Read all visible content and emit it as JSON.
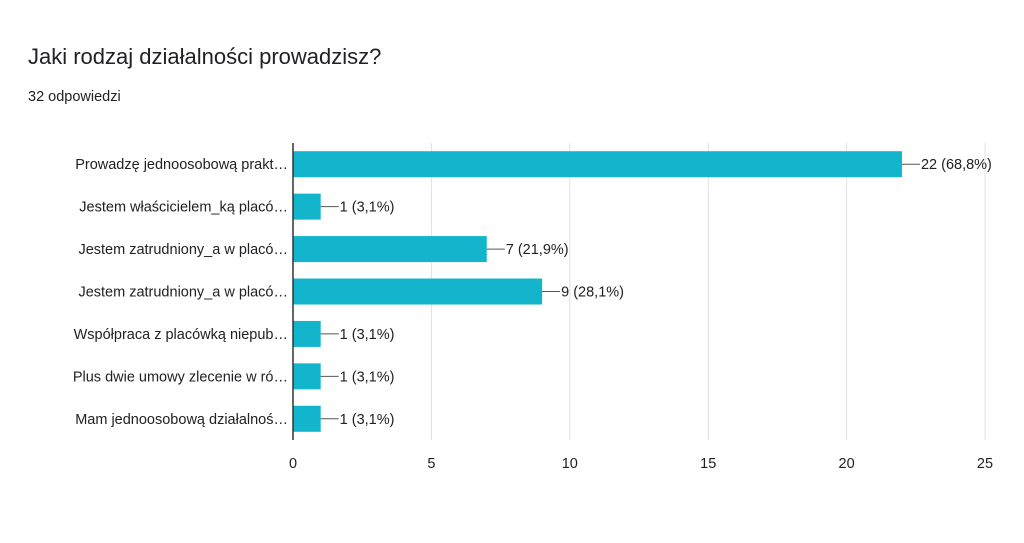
{
  "question": {
    "title": "Jaki rodzaj działalności prowadzisz?",
    "responses": "32 odpowiedzi"
  },
  "colors": {
    "bar": "#12b5cb",
    "grid": "#e0e0e0",
    "axis": "#333333"
  },
  "chart_data": {
    "type": "bar",
    "orientation": "horizontal",
    "categories": [
      "Prowadzę jednoosobową prakt…",
      "Jestem właścicielem_ką placó…",
      "Jestem zatrudniony_a w placó…",
      "Jestem zatrudniony_a w placó…",
      "Współpraca z placówką niepub…",
      "Plus dwie umowy zlecenie w ró…",
      "Mam jednoosobową działalnoś…"
    ],
    "values": [
      22,
      1,
      7,
      9,
      1,
      1,
      1
    ],
    "data_labels": [
      "22 (68,8%)",
      "1 (3,1%)",
      "7 (21,9%)",
      "9 (28,1%)",
      "1 (3,1%)",
      "1 (3,1%)",
      "1 (3,1%)"
    ],
    "xlim": [
      0,
      25
    ],
    "xticks": [
      0,
      5,
      10,
      15,
      20,
      25
    ],
    "grid": true,
    "legend": "none"
  }
}
